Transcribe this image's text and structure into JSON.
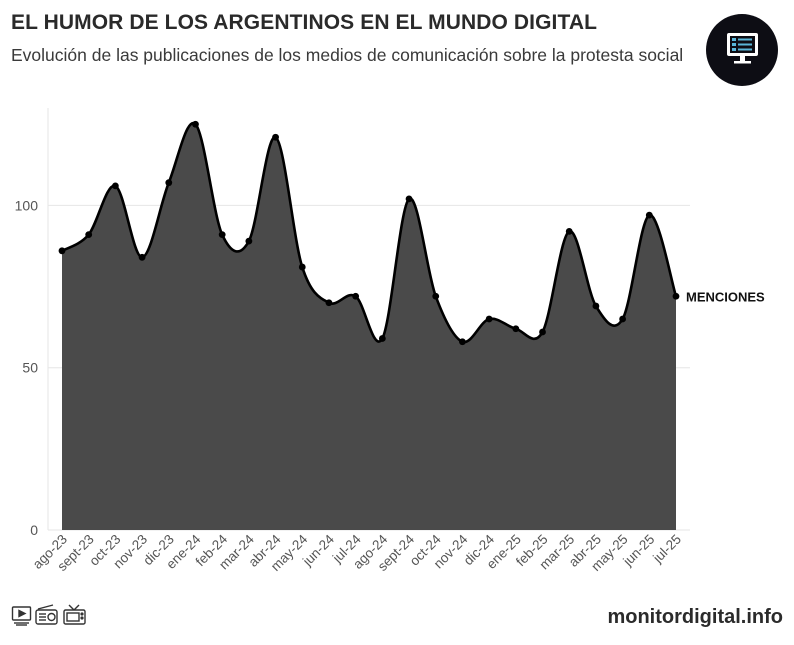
{
  "header": {
    "title": "EL HUMOR DE LOS ARGENTINOS EN EL MUNDO DIGITAL",
    "subtitle": "Evolución de las publicaciones de los medios de comunicación sobre la protesta social"
  },
  "footer": {
    "brand": "monitordigital.info",
    "icons": [
      "tv-screen-icon",
      "radio-icon",
      "television-icon"
    ]
  },
  "logo": {
    "icon": "monitor-screen-icon"
  },
  "colors": {
    "area_fill": "#4a4a4a",
    "line": "#000000",
    "grid": "#e6e6e6",
    "axis_text": "#555555"
  },
  "chart_data": {
    "type": "area",
    "categories": [
      "ago-23",
      "sept-23",
      "oct-23",
      "nov-23",
      "dic-23",
      "ene-24",
      "feb-24",
      "mar-24",
      "abr-24",
      "may-24",
      "jun-24",
      "jul-24",
      "ago-24",
      "sept-24",
      "oct-24",
      "nov-24",
      "dic-24",
      "ene-25",
      "feb-25",
      "mar-25",
      "abr-25",
      "may-25",
      "jun-25",
      "jul-25"
    ],
    "series": [
      {
        "name": "MENCIONES",
        "values": [
          86,
          91,
          106,
          84,
          107,
          125,
          91,
          89,
          121,
          81,
          70,
          72,
          59,
          102,
          72,
          58,
          65,
          62,
          61,
          92,
          69,
          65,
          97,
          72
        ]
      }
    ],
    "ylim": [
      0,
      130
    ],
    "yticks": [
      0,
      50,
      100
    ],
    "grid": true,
    "series_label_position": "end-of-line"
  }
}
